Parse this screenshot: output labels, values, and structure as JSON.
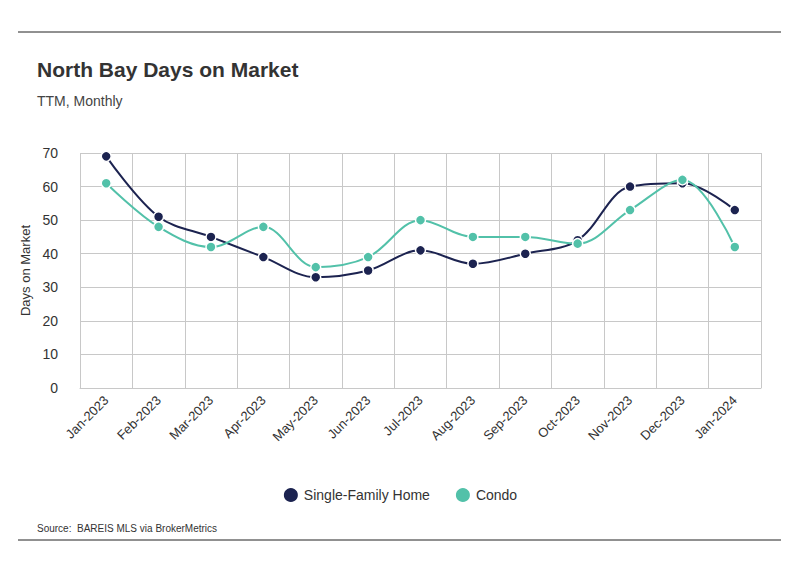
{
  "chart_data": {
    "type": "line",
    "title": "North Bay Days on Market",
    "subtitle": "TTM, Monthly",
    "y_label": "Days on Market",
    "source": "Source:  BAREIS MLS via BrokerMetrics",
    "categories": [
      "Jan-2023",
      "Feb-2023",
      "Mar-2023",
      "Apr-2023",
      "May-2023",
      "Jun-2023",
      "Jul-2023",
      "Aug-2023",
      "Sep-2023",
      "Oct-2023",
      "Nov-2023",
      "Dec-2023",
      "Jan-2024"
    ],
    "series": [
      {
        "name": "Single-Family Home",
        "color": "#1c2350",
        "values": [
          69,
          51,
          45,
          39,
          33,
          35,
          41,
          37,
          40,
          44,
          60,
          61,
          53
        ]
      },
      {
        "name": "Condo",
        "color": "#52c1a9",
        "values": [
          61,
          48,
          42,
          48,
          36,
          39,
          50,
          45,
          45,
          43,
          53,
          62,
          42
        ]
      }
    ],
    "ylim": [
      0,
      70
    ],
    "yticks": [
      0,
      10,
      20,
      30,
      40,
      50,
      60,
      70
    ],
    "grid": true,
    "legend": "bottom",
    "marker": "circle",
    "line_style": "solid"
  }
}
